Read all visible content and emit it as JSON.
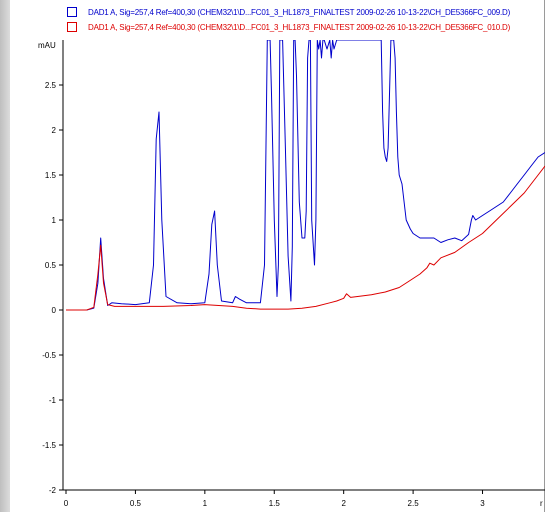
{
  "chart_data": {
    "type": "line",
    "title": "",
    "xlabel": "",
    "ylabel": "mAU",
    "x_unit_partial": "r",
    "xlim": [
      0,
      3.45
    ],
    "ylim": [
      -2.0,
      3.0
    ],
    "x_ticks": [
      0,
      0.5,
      1,
      1.5,
      2,
      2.5,
      3
    ],
    "x_tick_labels": [
      "0",
      "0.5",
      "1",
      "1.5",
      "2",
      "2.5",
      "3"
    ],
    "y_ticks": [
      -2,
      -1.5,
      -1,
      -0.5,
      0,
      0.5,
      1,
      1.5,
      2,
      2.5
    ],
    "y_tick_labels": [
      "-2",
      "-1.5",
      "-1",
      "-0.5",
      "0",
      "0.5",
      "1",
      "1.5",
      "2",
      "2.5"
    ],
    "grid": false,
    "legend_position": "top",
    "series": [
      {
        "name": "DAD1 A, Sig=257,4 Ref=400,30 (CHEM32\\1\\D...FC01_3_HL1873_FINALTEST 2009-02-26 10-13-22\\CH_DE5366FC_009.D)",
        "color": "#0000cc",
        "x": [
          0,
          0.15,
          0.2,
          0.23,
          0.25,
          0.27,
          0.3,
          0.33,
          0.4,
          0.5,
          0.6,
          0.63,
          0.65,
          0.67,
          0.69,
          0.72,
          0.8,
          0.9,
          1.0,
          1.03,
          1.05,
          1.07,
          1.09,
          1.12,
          1.2,
          1.22,
          1.25,
          1.3,
          1.4,
          1.43,
          1.45,
          1.46,
          1.47,
          1.48,
          1.5,
          1.52,
          1.53,
          1.54,
          1.55,
          1.56,
          1.58,
          1.6,
          1.62,
          1.63,
          1.64,
          1.65,
          1.66,
          1.68,
          1.7,
          1.72,
          1.73,
          1.74,
          1.75,
          1.76,
          1.77,
          1.79,
          1.8,
          1.81,
          1.82,
          1.83,
          1.84,
          1.85,
          1.86,
          1.88,
          1.9,
          1.91,
          1.92,
          1.93,
          1.95,
          2.0,
          2.05,
          2.1,
          2.15,
          2.2,
          2.25,
          2.27,
          2.28,
          2.29,
          2.3,
          2.31,
          2.32,
          2.34,
          2.36,
          2.37,
          2.38,
          2.39,
          2.4,
          2.42,
          2.45,
          2.48,
          2.5,
          2.55,
          2.6,
          2.65,
          2.7,
          2.75,
          2.8,
          2.85,
          2.9,
          2.92,
          2.93,
          2.95,
          3.0,
          3.05,
          3.1,
          3.15,
          3.2,
          3.25,
          3.3,
          3.35,
          3.4,
          3.45
        ],
        "values": [
          0.0,
          0.0,
          0.02,
          0.3,
          0.8,
          0.35,
          0.05,
          0.08,
          0.07,
          0.06,
          0.08,
          0.5,
          1.9,
          2.2,
          1.0,
          0.15,
          0.08,
          0.07,
          0.08,
          0.4,
          0.95,
          1.1,
          0.5,
          0.1,
          0.08,
          0.15,
          0.12,
          0.08,
          0.08,
          0.5,
          3.0,
          3.0,
          3.0,
          2.4,
          1.0,
          0.15,
          0.5,
          3.0,
          3.0,
          3.0,
          1.8,
          0.6,
          0.1,
          0.7,
          3.0,
          3.0,
          2.6,
          1.2,
          0.8,
          0.8,
          1.1,
          2.8,
          3.0,
          3.0,
          1.0,
          0.5,
          1.0,
          3.0,
          2.9,
          3.0,
          2.8,
          3.0,
          3.0,
          2.9,
          3.0,
          2.8,
          3.0,
          2.9,
          3.0,
          3.0,
          3.0,
          3.0,
          3.0,
          3.0,
          3.0,
          3.0,
          2.2,
          1.8,
          1.7,
          1.65,
          1.8,
          3.0,
          3.0,
          2.8,
          2.2,
          1.7,
          1.5,
          1.4,
          1.0,
          0.9,
          0.85,
          0.8,
          0.8,
          0.8,
          0.75,
          0.78,
          0.8,
          0.77,
          0.84,
          1.0,
          1.05,
          1.0,
          1.05,
          1.1,
          1.15,
          1.2,
          1.3,
          1.4,
          1.5,
          1.6,
          1.7,
          1.75
        ]
      },
      {
        "name": "DAD1 A, Sig=257,4 Ref=400,30 (CHEM32\\1\\D...FC01_3_HL1873_FINALTEST 2009-02-26 10-13-22\\CH_DE5366FC_010.D)",
        "color": "#dd0000",
        "x": [
          0,
          0.15,
          0.2,
          0.23,
          0.25,
          0.27,
          0.3,
          0.35,
          0.5,
          0.7,
          0.9,
          1.0,
          1.1,
          1.2,
          1.3,
          1.4,
          1.5,
          1.6,
          1.7,
          1.8,
          1.9,
          1.95,
          2.0,
          2.02,
          2.05,
          2.1,
          2.2,
          2.3,
          2.4,
          2.45,
          2.5,
          2.55,
          2.6,
          2.62,
          2.65,
          2.7,
          2.8,
          2.9,
          3.0,
          3.1,
          3.2,
          3.3,
          3.4,
          3.45
        ],
        "values": [
          0.0,
          0.0,
          0.03,
          0.4,
          0.72,
          0.3,
          0.06,
          0.04,
          0.04,
          0.04,
          0.05,
          0.06,
          0.05,
          0.04,
          0.02,
          0.01,
          0.01,
          0.01,
          0.02,
          0.04,
          0.08,
          0.1,
          0.13,
          0.18,
          0.14,
          0.15,
          0.17,
          0.2,
          0.25,
          0.3,
          0.35,
          0.4,
          0.47,
          0.52,
          0.5,
          0.58,
          0.64,
          0.75,
          0.85,
          1.0,
          1.15,
          1.3,
          1.5,
          1.6
        ]
      }
    ]
  }
}
